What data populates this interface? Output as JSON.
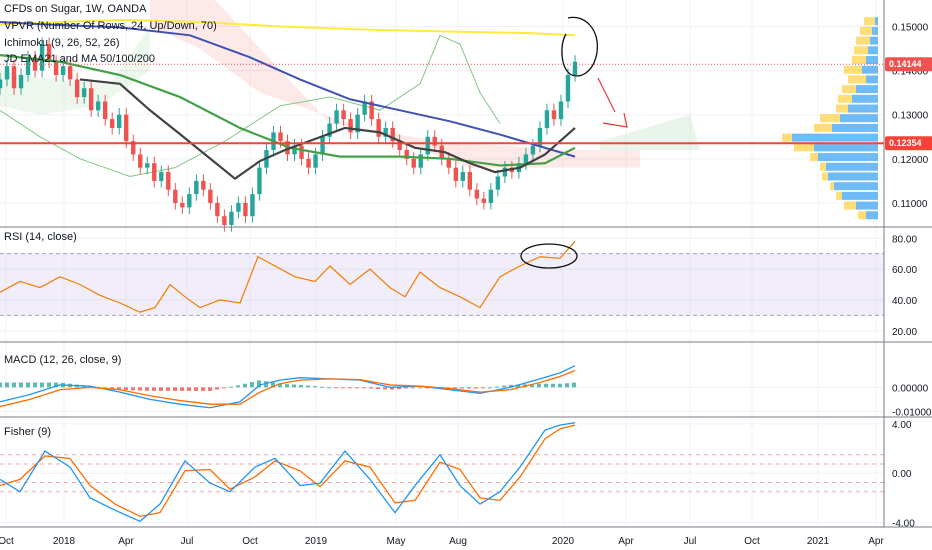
{
  "legend": {
    "title": "CFDs on Sugar, 1W, OANDA",
    "vpvr": "VPVR (Number Of Rows, 24, Up/Down, 70)",
    "ichimoku": "Ichimoku (9, 26, 52, 26)",
    "ema": "JD EMA21 and MA 50/100/200",
    "rsi": "RSI (14, close)",
    "macd": "MACD (12, 26, close, 9)",
    "fisher": "Fisher (9)"
  },
  "colors": {
    "up": "#26a69a",
    "down": "#ef5350",
    "rsi": "#f57c00",
    "macd": "#2196f3",
    "signal": "#ff6d00",
    "ma_yellow": "#ffeb3b",
    "ma_blue": "#3f51b5",
    "ma_green": "#43a047",
    "ma_black": "#424242",
    "resistance": "#f44336",
    "rsi_band": "#7e57c2"
  },
  "chart_data": [
    {
      "type": "candlestick",
      "title": "CFDs on Sugar, 1W, OANDA",
      "ylim": [
        0.105,
        0.156
      ],
      "yticks": [
        "0.15000",
        "0.14000",
        "0.13000",
        "0.12000",
        "0.11000"
      ],
      "price_badges": [
        {
          "label": "0.14144",
          "value": 0.14144,
          "color": "#ef5350"
        },
        {
          "label": "0.12354",
          "value": 0.12354,
          "color": "#f44336"
        }
      ],
      "support_line": 0.12354,
      "x_ticks": [
        "Oct",
        "2018",
        "Apr",
        "Jul",
        "Oct",
        "2019",
        "May",
        "Aug",
        "2020",
        "Apr",
        "Jul",
        "Oct",
        "2021",
        "Apr"
      ],
      "closes": [
        0.138,
        0.141,
        0.136,
        0.139,
        0.143,
        0.14,
        0.146,
        0.142,
        0.139,
        0.141,
        0.138,
        0.134,
        0.136,
        0.131,
        0.133,
        0.129,
        0.127,
        0.13,
        0.124,
        0.121,
        0.118,
        0.119,
        0.115,
        0.117,
        0.113,
        0.11,
        0.109,
        0.112,
        0.115,
        0.113,
        0.11,
        0.107,
        0.105,
        0.108,
        0.11,
        0.107,
        0.112,
        0.118,
        0.122,
        0.126,
        0.124,
        0.121,
        0.123,
        0.12,
        0.118,
        0.121,
        0.125,
        0.128,
        0.131,
        0.129,
        0.126,
        0.13,
        0.133,
        0.129,
        0.125,
        0.127,
        0.124,
        0.122,
        0.12,
        0.118,
        0.121,
        0.125,
        0.123,
        0.12,
        0.118,
        0.115,
        0.117,
        0.113,
        0.111,
        0.11,
        0.113,
        0.116,
        0.118,
        0.117,
        0.119,
        0.121,
        0.123,
        0.127,
        0.131,
        0.129,
        0.133,
        0.139,
        0.142
      ],
      "ma_yellow": [
        [
          0,
          0.1505
        ],
        [
          60,
          0.151
        ],
        [
          120,
          0.1515
        ],
        [
          200,
          0.151
        ],
        [
          280,
          0.15
        ],
        [
          380,
          0.1492
        ],
        [
          460,
          0.1488
        ],
        [
          530,
          0.1485
        ],
        [
          575,
          0.148
        ]
      ],
      "ma_blue": [
        [
          0,
          0.151
        ],
        [
          40,
          0.1505
        ],
        [
          120,
          0.1498
        ],
        [
          190,
          0.148
        ],
        [
          250,
          0.143
        ],
        [
          300,
          0.138
        ],
        [
          350,
          0.1335
        ],
        [
          400,
          0.131
        ],
        [
          450,
          0.1285
        ],
        [
          500,
          0.1255
        ],
        [
          575,
          0.1205
        ]
      ],
      "ma_green": [
        [
          0,
          0.1435
        ],
        [
          60,
          0.142
        ],
        [
          120,
          0.139
        ],
        [
          180,
          0.134
        ],
        [
          240,
          0.127
        ],
        [
          290,
          0.1225
        ],
        [
          340,
          0.1205
        ],
        [
          400,
          0.1205
        ],
        [
          450,
          0.12
        ],
        [
          500,
          0.1185
        ],
        [
          545,
          0.119
        ],
        [
          575,
          0.1225
        ]
      ],
      "ma_black": [
        [
          80,
          0.138
        ],
        [
          120,
          0.137
        ],
        [
          150,
          0.131
        ],
        [
          175,
          0.1265
        ],
        [
          205,
          0.121
        ],
        [
          235,
          0.1155
        ],
        [
          260,
          0.1195
        ],
        [
          285,
          0.122
        ],
        [
          315,
          0.1245
        ],
        [
          345,
          0.127
        ],
        [
          380,
          0.126
        ],
        [
          415,
          0.1225
        ],
        [
          445,
          0.1215
        ],
        [
          470,
          0.119
        ],
        [
          495,
          0.117
        ],
        [
          520,
          0.118
        ],
        [
          545,
          0.121
        ],
        [
          575,
          0.127
        ]
      ],
      "volume_profile": [
        [
          0.1512,
          3,
          14
        ],
        [
          0.149,
          6,
          18
        ],
        [
          0.1468,
          8,
          22
        ],
        [
          0.1446,
          10,
          24
        ],
        [
          0.1424,
          12,
          26
        ],
        [
          0.1402,
          16,
          34
        ],
        [
          0.138,
          12,
          30
        ],
        [
          0.1358,
          22,
          36
        ],
        [
          0.1336,
          26,
          40
        ],
        [
          0.1314,
          30,
          42
        ],
        [
          0.1292,
          38,
          58
        ],
        [
          0.127,
          46,
          64
        ],
        [
          0.1248,
          86,
          96
        ],
        [
          0.1226,
          64,
          84
        ],
        [
          0.1204,
          60,
          68
        ],
        [
          0.1182,
          52,
          58
        ],
        [
          0.116,
          50,
          56
        ],
        [
          0.1138,
          44,
          48
        ],
        [
          0.1116,
          36,
          42
        ],
        [
          0.1094,
          22,
          34
        ],
        [
          0.1072,
          12,
          20
        ]
      ]
    },
    {
      "type": "line",
      "title": "RSI (14, close)",
      "ylim": [
        14,
        86
      ],
      "yticks": [
        "80.00",
        "60.00",
        "40.00",
        "20.00"
      ],
      "bands": [
        30,
        70
      ],
      "values": [
        [
          0,
          45
        ],
        [
          20,
          52
        ],
        [
          40,
          48
        ],
        [
          60,
          55
        ],
        [
          80,
          50
        ],
        [
          100,
          43
        ],
        [
          120,
          38
        ],
        [
          140,
          32
        ],
        [
          155,
          35
        ],
        [
          170,
          50
        ],
        [
          185,
          42
        ],
        [
          200,
          35
        ],
        [
          220,
          40
        ],
        [
          240,
          38
        ],
        [
          258,
          68
        ],
        [
          275,
          62
        ],
        [
          295,
          55
        ],
        [
          315,
          52
        ],
        [
          330,
          62
        ],
        [
          350,
          50
        ],
        [
          370,
          60
        ],
        [
          390,
          48
        ],
        [
          405,
          42
        ],
        [
          420,
          58
        ],
        [
          440,
          48
        ],
        [
          460,
          42
        ],
        [
          480,
          35
        ],
        [
          500,
          55
        ],
        [
          520,
          62
        ],
        [
          540,
          68
        ],
        [
          560,
          67
        ],
        [
          575,
          78
        ]
      ]
    },
    {
      "type": "histogram",
      "title": "MACD (12, 26, close, 9)",
      "ylim": [
        -0.0115,
        0.018
      ],
      "yticks": [
        "0.00000",
        "-0.01000"
      ],
      "macd": [
        [
          0,
          -0.006
        ],
        [
          30,
          -0.003
        ],
        [
          60,
          0.001
        ],
        [
          90,
          0.0005
        ],
        [
          120,
          -0.002
        ],
        [
          150,
          -0.005
        ],
        [
          180,
          -0.007
        ],
        [
          210,
          -0.0085
        ],
        [
          240,
          -0.006
        ],
        [
          260,
          0.001
        ],
        [
          280,
          0.003
        ],
        [
          300,
          0.004
        ],
        [
          330,
          0.0035
        ],
        [
          360,
          0.003
        ],
        [
          390,
          0.0
        ],
        [
          420,
          0.0005
        ],
        [
          450,
          -0.001
        ],
        [
          480,
          -0.0025
        ],
        [
          510,
          0.0
        ],
        [
          540,
          0.0035
        ],
        [
          560,
          0.006
        ],
        [
          575,
          0.009
        ]
      ],
      "signal": [
        [
          0,
          -0.008
        ],
        [
          30,
          -0.005
        ],
        [
          60,
          -0.001
        ],
        [
          90,
          0.0
        ],
        [
          120,
          -0.001
        ],
        [
          150,
          -0.0035
        ],
        [
          180,
          -0.0055
        ],
        [
          210,
          -0.007
        ],
        [
          240,
          -0.007
        ],
        [
          260,
          -0.002
        ],
        [
          280,
          0.0015
        ],
        [
          300,
          0.003
        ],
        [
          330,
          0.0035
        ],
        [
          360,
          0.0032
        ],
        [
          390,
          0.001
        ],
        [
          420,
          0.0005
        ],
        [
          450,
          -0.0005
        ],
        [
          480,
          -0.002
        ],
        [
          510,
          -0.001
        ],
        [
          540,
          0.002
        ],
        [
          560,
          0.0045
        ],
        [
          575,
          0.007
        ]
      ]
    },
    {
      "type": "line",
      "title": "Fisher (9)",
      "ylim": [
        -4.2,
        4.4
      ],
      "yticks": [
        "4.00",
        "0.00",
        "-4.00"
      ],
      "fisher": [
        [
          0,
          -0.5
        ],
        [
          20,
          -1.5
        ],
        [
          45,
          1.8
        ],
        [
          70,
          0.5
        ],
        [
          90,
          -2.0
        ],
        [
          115,
          -3.0
        ],
        [
          140,
          -3.9
        ],
        [
          160,
          -2.5
        ],
        [
          185,
          1.0
        ],
        [
          210,
          -0.8
        ],
        [
          230,
          -1.5
        ],
        [
          255,
          0.5
        ],
        [
          275,
          1.2
        ],
        [
          300,
          -1.0
        ],
        [
          320,
          -0.8
        ],
        [
          345,
          1.8
        ],
        [
          370,
          -0.5
        ],
        [
          395,
          -3.2
        ],
        [
          415,
          -1.0
        ],
        [
          440,
          1.5
        ],
        [
          460,
          -1.0
        ],
        [
          480,
          -2.5
        ],
        [
          500,
          -1.5
        ],
        [
          520,
          0.5
        ],
        [
          545,
          3.5
        ],
        [
          560,
          3.9
        ],
        [
          575,
          4.1
        ]
      ],
      "trigger": [
        [
          0,
          -1.0
        ],
        [
          20,
          -0.5
        ],
        [
          45,
          1.4
        ],
        [
          70,
          1.2
        ],
        [
          90,
          -1.0
        ],
        [
          115,
          -2.5
        ],
        [
          140,
          -3.5
        ],
        [
          160,
          -3.2
        ],
        [
          185,
          0.2
        ],
        [
          210,
          0.3
        ],
        [
          230,
          -1.3
        ],
        [
          255,
          -0.3
        ],
        [
          275,
          1.0
        ],
        [
          300,
          0.2
        ],
        [
          320,
          -1.1
        ],
        [
          345,
          1.0
        ],
        [
          370,
          0.5
        ],
        [
          395,
          -2.4
        ],
        [
          415,
          -2.2
        ],
        [
          440,
          0.9
        ],
        [
          460,
          0.3
        ],
        [
          480,
          -2.0
        ],
        [
          500,
          -2.2
        ],
        [
          520,
          -0.3
        ],
        [
          545,
          2.8
        ],
        [
          560,
          3.6
        ],
        [
          575,
          3.9
        ]
      ]
    }
  ]
}
